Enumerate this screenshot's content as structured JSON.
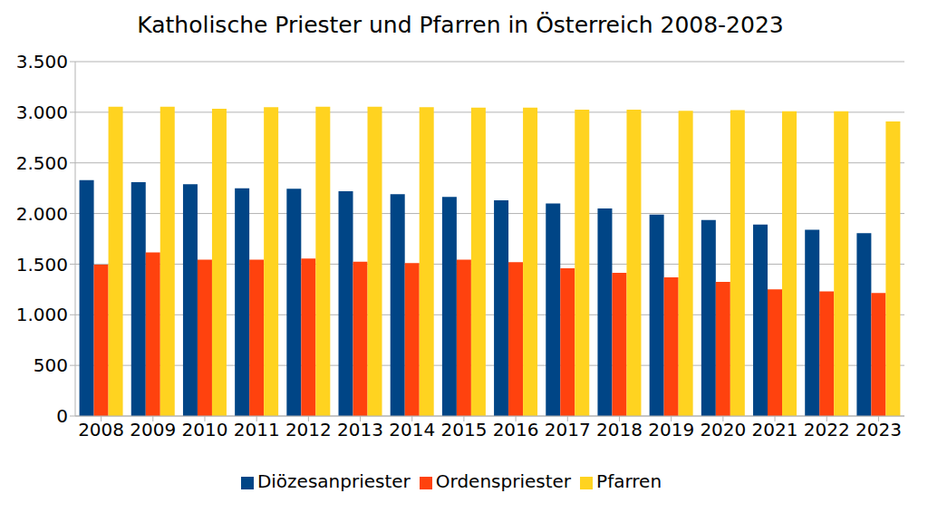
{
  "chart_data": {
    "type": "bar",
    "title": "Katholische Priester und Pfarren in Österreich 2008-2023",
    "categories": [
      "2008",
      "2009",
      "2010",
      "2011",
      "2012",
      "2013",
      "2014",
      "2015",
      "2016",
      "2017",
      "2018",
      "2019",
      "2020",
      "2021",
      "2022",
      "2023"
    ],
    "series": [
      {
        "name": "Diözesanpriester",
        "color": "#004586",
        "values": [
          2330,
          2310,
          2290,
          2250,
          2245,
          2220,
          2190,
          2165,
          2130,
          2100,
          2050,
          1990,
          1935,
          1890,
          1840,
          1805
        ]
      },
      {
        "name": "Ordenspriester",
        "color": "#ff420e",
        "values": [
          1495,
          1615,
          1545,
          1545,
          1555,
          1525,
          1510,
          1545,
          1520,
          1460,
          1415,
          1370,
          1325,
          1250,
          1230,
          1215
        ]
      },
      {
        "name": "Pfarren",
        "color": "#ffd320",
        "values": [
          3055,
          3055,
          3035,
          3050,
          3055,
          3055,
          3050,
          3045,
          3045,
          3025,
          3025,
          3015,
          3020,
          3010,
          3010,
          2910
        ]
      }
    ],
    "ylim": [
      0,
      3500
    ],
    "yticks": [
      0,
      500,
      {
        "value": 1000,
        "label": "1.000"
      },
      {
        "value": 1500,
        "label": "1.500"
      },
      {
        "value": 2000,
        "label": "2.000"
      },
      {
        "value": 2500,
        "label": "2.500"
      },
      {
        "value": 3000,
        "label": "3.000"
      },
      {
        "value": 3500,
        "label": "3.500"
      }
    ],
    "grid": true,
    "legend": "bottom"
  }
}
